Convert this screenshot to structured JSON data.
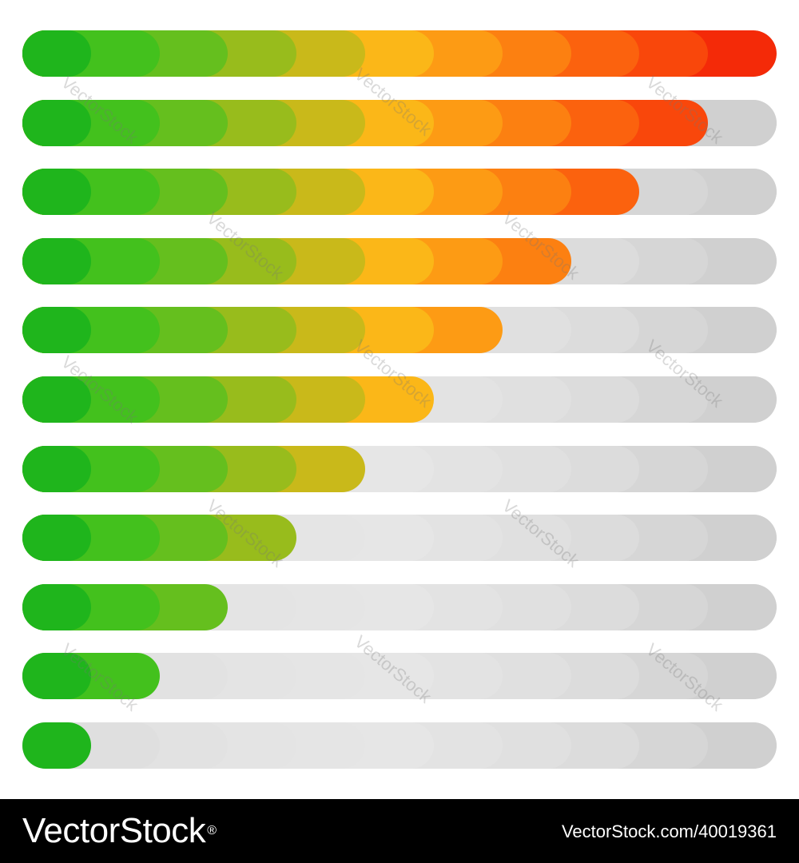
{
  "palette": {
    "filled": [
      "#1fb51c",
      "#43c11d",
      "#65bf1e",
      "#98bc1c",
      "#c9b91a",
      "#fbb718",
      "#fd9b14",
      "#fc8011",
      "#fb620e",
      "#f9470b",
      "#f42a08"
    ],
    "empty": [
      "#d7d7d7",
      "#dfdfdf",
      "#e2e2e2",
      "#e4e4e4",
      "#e5e5e5",
      "#e6e6e6",
      "#e3e3e3",
      "#e0e0e0",
      "#dcdcdc",
      "#d6d6d6",
      "#d0d0d0"
    ]
  },
  "levels": [
    {
      "filled_segments": 11,
      "total_segments": 11
    },
    {
      "filled_segments": 10,
      "total_segments": 11
    },
    {
      "filled_segments": 9,
      "total_segments": 11
    },
    {
      "filled_segments": 8,
      "total_segments": 11
    },
    {
      "filled_segments": 7,
      "total_segments": 11
    },
    {
      "filled_segments": 6,
      "total_segments": 11
    },
    {
      "filled_segments": 5,
      "total_segments": 11
    },
    {
      "filled_segments": 4,
      "total_segments": 11
    },
    {
      "filled_segments": 3,
      "total_segments": 11
    },
    {
      "filled_segments": 2,
      "total_segments": 11
    },
    {
      "filled_segments": 1,
      "total_segments": 11
    }
  ],
  "watermark": "VectorStock",
  "footer": {
    "logo": "VectorStock",
    "logo_mark": "®",
    "image_id": "VectorStock.com/40019361"
  }
}
